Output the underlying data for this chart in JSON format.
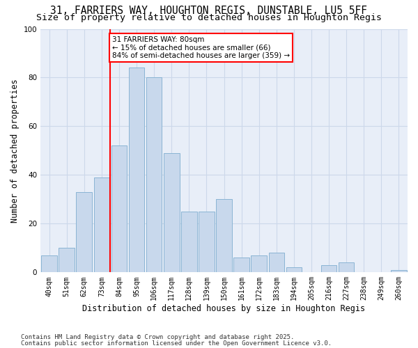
{
  "title_line1": "31, FARRIERS WAY, HOUGHTON REGIS, DUNSTABLE, LU5 5FF",
  "title_line2": "Size of property relative to detached houses in Houghton Regis",
  "xlabel": "Distribution of detached houses by size in Houghton Regis",
  "ylabel": "Number of detached properties",
  "categories": [
    "40sqm",
    "51sqm",
    "62sqm",
    "73sqm",
    "84sqm",
    "95sqm",
    "106sqm",
    "117sqm",
    "128sqm",
    "139sqm",
    "150sqm",
    "161sqm",
    "172sqm",
    "183sqm",
    "194sqm",
    "205sqm",
    "216sqm",
    "227sqm",
    "238sqm",
    "249sqm",
    "260sqm"
  ],
  "values": [
    7,
    10,
    33,
    39,
    52,
    84,
    80,
    49,
    25,
    25,
    30,
    6,
    7,
    8,
    2,
    0,
    3,
    4,
    0,
    0,
    1
  ],
  "bar_color": "#c8d8ec",
  "bar_edge_color": "#8ab4d4",
  "annotation_text": "31 FARRIERS WAY: 80sqm\n← 15% of detached houses are smaller (66)\n84% of semi-detached houses are larger (359) →",
  "annotation_box_color": "white",
  "annotation_box_edge_color": "red",
  "red_line_color": "red",
  "grid_color": "#ccd8ea",
  "bg_color": "#e8eef8",
  "ylim": [
    0,
    100
  ],
  "footnote1": "Contains HM Land Registry data © Crown copyright and database right 2025.",
  "footnote2": "Contains public sector information licensed under the Open Government Licence v3.0.",
  "title_fontsize": 10.5,
  "subtitle_fontsize": 9.5,
  "tick_fontsize": 7,
  "ylabel_fontsize": 8.5,
  "xlabel_fontsize": 8.5,
  "annotation_fontsize": 7.5,
  "footnote_fontsize": 6.5
}
